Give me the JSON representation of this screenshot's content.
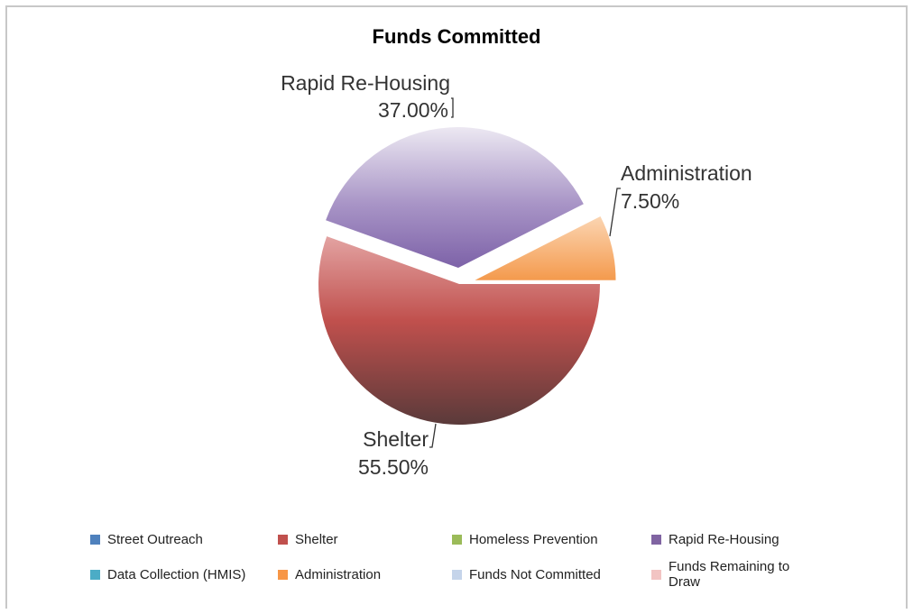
{
  "chart_data": {
    "type": "pie",
    "title": "Funds Committed",
    "categories": [
      "Street Outreach",
      "Shelter",
      "Homeless Prevention",
      "Rapid Re-Housing",
      "Data Collection (HMIS)",
      "Administration",
      "Funds Not Committed",
      "Funds Remaining to Draw"
    ],
    "values": [
      0,
      55.5,
      0,
      37.0,
      0,
      7.5,
      0,
      0
    ],
    "value_labels": [
      "",
      "55.50%",
      "",
      "37.00%",
      "",
      "7.50%",
      "",
      ""
    ],
    "colors": [
      "#4f81bd",
      "#c0504d",
      "#9bbb59",
      "#8064a2",
      "#4bacc6",
      "#f79646",
      "#c5d4ea",
      "#f2c4c3"
    ],
    "legend_position": "bottom"
  }
}
